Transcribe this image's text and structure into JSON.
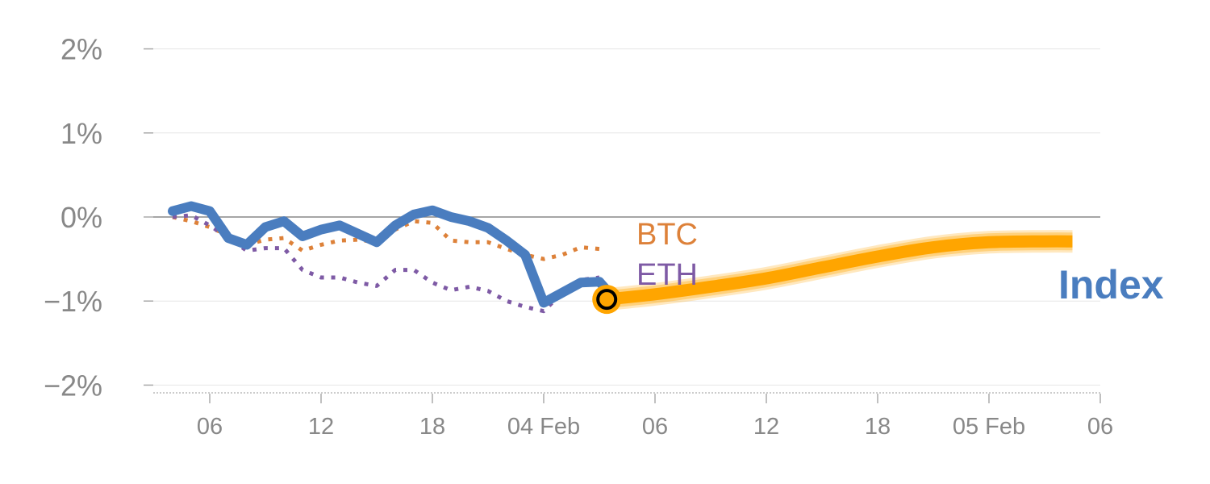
{
  "chart_data": {
    "type": "line",
    "x_unit": "hours",
    "x_ticks": [
      {
        "x": 6,
        "label": "06"
      },
      {
        "x": 12,
        "label": "12"
      },
      {
        "x": 18,
        "label": "18"
      },
      {
        "x": 24,
        "label": "04 Feb"
      },
      {
        "x": 30,
        "label": "06"
      },
      {
        "x": 36,
        "label": "12"
      },
      {
        "x": 42,
        "label": "18"
      },
      {
        "x": 48,
        "label": "05 Feb"
      },
      {
        "x": 54,
        "label": "06"
      }
    ],
    "xlim": [
      3.2,
      54
    ],
    "y_ticks": [
      {
        "y": 2,
        "label": "2%"
      },
      {
        "y": 1,
        "label": "1%"
      },
      {
        "y": 0,
        "label": "0%"
      },
      {
        "y": -1,
        "label": "−1%"
      },
      {
        "y": -2,
        "label": "−2%"
      }
    ],
    "ylim": [
      -2.1,
      2.0
    ],
    "grid": true,
    "series": [
      {
        "name": "BTC",
        "color": "#dd8139",
        "style": "dotted",
        "x": [
          4,
          5,
          6,
          7,
          8,
          9,
          10,
          11,
          12,
          13,
          14,
          15,
          16,
          17,
          18,
          19,
          20,
          21,
          22,
          23,
          24,
          25,
          26,
          27
        ],
        "y": [
          0.0,
          -0.05,
          -0.12,
          -0.22,
          -0.33,
          -0.27,
          -0.25,
          -0.4,
          -0.33,
          -0.28,
          -0.27,
          -0.3,
          -0.15,
          -0.05,
          -0.07,
          -0.28,
          -0.3,
          -0.3,
          -0.38,
          -0.45,
          -0.5,
          -0.45,
          -0.36,
          -0.38
        ]
      },
      {
        "name": "ETH",
        "color": "#7e5aa5",
        "style": "dotted",
        "x": [
          4,
          5,
          6,
          7,
          8,
          9,
          10,
          11,
          12,
          13,
          14,
          15,
          16,
          17,
          18,
          19,
          20,
          21,
          22,
          23,
          24,
          25,
          26,
          27
        ],
        "y": [
          0.0,
          0.02,
          -0.1,
          -0.25,
          -0.4,
          -0.37,
          -0.37,
          -0.63,
          -0.72,
          -0.72,
          -0.78,
          -0.82,
          -0.63,
          -0.63,
          -0.78,
          -0.87,
          -0.83,
          -0.88,
          -1.0,
          -1.07,
          -1.12,
          -0.9,
          -0.75,
          -0.72
        ]
      },
      {
        "name": "Index",
        "color": "#4a7dbf",
        "style": "solid",
        "x": [
          4,
          5,
          6,
          7,
          8,
          9,
          10,
          11,
          12,
          13,
          14,
          15,
          16,
          17,
          18,
          19,
          20,
          21,
          22,
          23,
          24,
          25,
          26,
          27,
          27.4
        ],
        "y": [
          0.07,
          0.13,
          0.07,
          -0.25,
          -0.33,
          -0.12,
          -0.05,
          -0.23,
          -0.15,
          -0.1,
          -0.2,
          -0.3,
          -0.1,
          0.03,
          0.08,
          0.0,
          -0.05,
          -0.13,
          -0.28,
          -0.45,
          -1.02,
          -0.9,
          -0.78,
          -0.77,
          -0.87
        ]
      },
      {
        "name": "Index forecast",
        "color": "#ffa500",
        "style": "band",
        "x": [
          27.4,
          30,
          33,
          36,
          39,
          42,
          45,
          48,
          51,
          52.5
        ],
        "y": [
          -0.98,
          -0.92,
          -0.83,
          -0.73,
          -0.6,
          -0.47,
          -0.36,
          -0.3,
          -0.29,
          -0.29
        ]
      }
    ],
    "marker": {
      "x": 27.4,
      "y": -0.98,
      "fill": "#ffa500",
      "ring": "#000000"
    },
    "labels": {
      "btc": {
        "text": "BTC",
        "color": "#dd8139"
      },
      "eth": {
        "text": "ETH",
        "color": "#7e5aa5"
      },
      "index": {
        "text": "Index",
        "color": "#4a7dbf"
      }
    }
  }
}
